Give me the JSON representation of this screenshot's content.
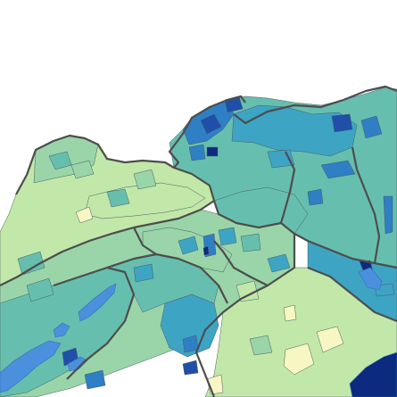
{
  "map": {
    "colors": {
      "background": "#ffffff",
      "very_light": "#f7f7c4",
      "light": "#c2e8a9",
      "light_mid": "#99d5a8",
      "mid": "#66bfae",
      "mid_dark": "#3ea4c4",
      "blue": "#2e7fc4",
      "dark_blue": "#1f4fa8",
      "navy": "#0c2a80",
      "lake": "#4a90dd",
      "canton_border": "#4d4d4d",
      "municipality_border": "#4a5a66"
    },
    "legend": null
  }
}
